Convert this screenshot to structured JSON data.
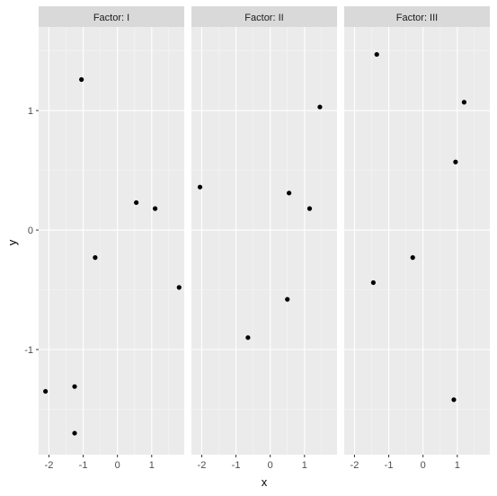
{
  "chart_data": {
    "type": "scatter",
    "xlabel": "x",
    "ylabel": "y",
    "xticks": [
      -2,
      -1,
      0,
      1
    ],
    "yticks": [
      -1,
      0,
      1
    ],
    "xlim": [
      -2.3,
      1.95
    ],
    "ylim": [
      -1.88,
      1.7
    ],
    "grid": true,
    "facets": [
      {
        "strip": "Factor: I",
        "points": [
          {
            "x": -2.1,
            "y": -1.35
          },
          {
            "x": -1.25,
            "y": -1.31
          },
          {
            "x": -1.25,
            "y": -1.7
          },
          {
            "x": -1.05,
            "y": 1.26
          },
          {
            "x": -0.65,
            "y": -0.23
          },
          {
            "x": 0.55,
            "y": 0.23
          },
          {
            "x": 1.1,
            "y": 0.18
          },
          {
            "x": 1.8,
            "y": -0.48
          }
        ]
      },
      {
        "strip": "Factor: II",
        "points": [
          {
            "x": -2.05,
            "y": 0.36
          },
          {
            "x": -0.65,
            "y": -0.9
          },
          {
            "x": 0.5,
            "y": -0.58
          },
          {
            "x": 0.55,
            "y": 0.31
          },
          {
            "x": 1.15,
            "y": 0.18
          },
          {
            "x": 1.45,
            "y": 1.03
          }
        ]
      },
      {
        "strip": "Factor: III",
        "points": [
          {
            "x": -1.35,
            "y": 1.47
          },
          {
            "x": -1.45,
            "y": -0.44
          },
          {
            "x": -0.3,
            "y": -0.23
          },
          {
            "x": 0.95,
            "y": 0.57
          },
          {
            "x": 1.2,
            "y": 1.07
          },
          {
            "x": 0.9,
            "y": -1.42
          }
        ]
      }
    ]
  }
}
